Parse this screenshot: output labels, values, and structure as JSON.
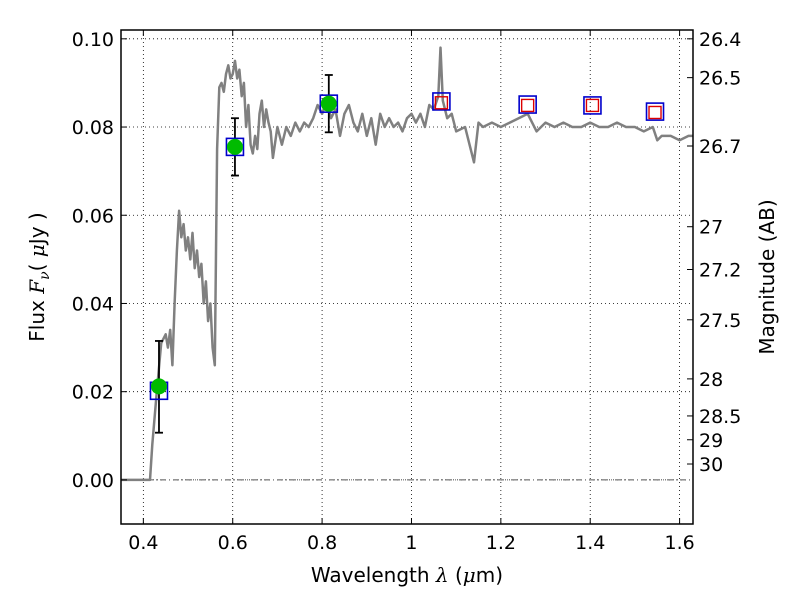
{
  "chart_data": {
    "type": "line",
    "xlabel": {
      "text": "Wavelength",
      "symbol": "λ",
      "unit_open": "(",
      "unit_mu": "μ",
      "unit_rest": "m)"
    },
    "ylabel": {
      "text": "Flux",
      "symbol": "F",
      "sub": "ν",
      "unit_open": "(",
      "unit_mu": "μ",
      "unit_rest": "Jy",
      "unit_close": ")"
    },
    "y2label": "Magnitude (AB)",
    "xlim": [
      0.35,
      1.63
    ],
    "ylim": [
      -0.01,
      0.102
    ],
    "xticks": [
      {
        "value": 0.4,
        "label": "0.4"
      },
      {
        "value": 0.6,
        "label": "0.6"
      },
      {
        "value": 0.8,
        "label": "0.8"
      },
      {
        "value": 1.0,
        "label": "1"
      },
      {
        "value": 1.2,
        "label": "1.2"
      },
      {
        "value": 1.4,
        "label": "1.4"
      },
      {
        "value": 1.6,
        "label": "1.6"
      }
    ],
    "yticks": [
      {
        "value": 0.0,
        "label": "0.00"
      },
      {
        "value": 0.02,
        "label": "0.02"
      },
      {
        "value": 0.04,
        "label": "0.04"
      },
      {
        "value": 0.06,
        "label": "0.06"
      },
      {
        "value": 0.08,
        "label": "0.08"
      },
      {
        "value": 0.1,
        "label": "0.10"
      }
    ],
    "right_ticks": [
      {
        "label": "26.4",
        "flux": 0.1
      },
      {
        "label": "26.5",
        "flux": 0.0912
      },
      {
        "label": "26.7",
        "flux": 0.0757
      },
      {
        "label": "27",
        "flux": 0.0574
      },
      {
        "label": "27.2",
        "flux": 0.0477
      },
      {
        "label": "27.5",
        "flux": 0.0363
      },
      {
        "label": "28",
        "flux": 0.0229
      },
      {
        "label": "28.5",
        "flux": 0.0145
      },
      {
        "label": "29",
        "flux": 0.0091
      },
      {
        "label": "30",
        "flux": 0.0036
      }
    ],
    "grid": true,
    "zero_line": true,
    "series": [
      {
        "kind": "model_spectrum",
        "color": "#808080",
        "x": [
          0.35,
          0.415,
          0.42,
          0.43,
          0.44,
          0.45,
          0.455,
          0.46,
          0.465,
          0.47,
          0.475,
          0.48,
          0.485,
          0.49,
          0.495,
          0.5,
          0.505,
          0.51,
          0.515,
          0.52,
          0.525,
          0.53,
          0.535,
          0.54,
          0.545,
          0.55,
          0.555,
          0.56,
          0.565,
          0.57,
          0.575,
          0.58,
          0.585,
          0.59,
          0.595,
          0.6,
          0.605,
          0.61,
          0.615,
          0.62,
          0.625,
          0.63,
          0.635,
          0.64,
          0.645,
          0.65,
          0.655,
          0.66,
          0.665,
          0.67,
          0.675,
          0.68,
          0.685,
          0.69,
          0.7,
          0.71,
          0.72,
          0.73,
          0.74,
          0.75,
          0.76,
          0.77,
          0.78,
          0.79,
          0.8,
          0.81,
          0.82,
          0.83,
          0.84,
          0.85,
          0.86,
          0.87,
          0.88,
          0.89,
          0.9,
          0.91,
          0.92,
          0.93,
          0.94,
          0.95,
          0.96,
          0.97,
          0.98,
          0.99,
          1.0,
          1.01,
          1.02,
          1.03,
          1.04,
          1.05,
          1.06,
          1.065,
          1.07,
          1.08,
          1.09,
          1.1,
          1.12,
          1.14,
          1.15,
          1.16,
          1.18,
          1.2,
          1.22,
          1.24,
          1.26,
          1.28,
          1.3,
          1.32,
          1.34,
          1.36,
          1.38,
          1.4,
          1.42,
          1.44,
          1.46,
          1.48,
          1.5,
          1.52,
          1.54,
          1.55,
          1.56,
          1.58,
          1.6,
          1.62,
          1.63
        ],
        "y": [
          0.0,
          0.0,
          0.008,
          0.02,
          0.031,
          0.033,
          0.03,
          0.034,
          0.026,
          0.04,
          0.052,
          0.061,
          0.055,
          0.058,
          0.052,
          0.055,
          0.05,
          0.056,
          0.048,
          0.052,
          0.046,
          0.049,
          0.04,
          0.045,
          0.036,
          0.04,
          0.03,
          0.026,
          0.075,
          0.089,
          0.09,
          0.088,
          0.092,
          0.094,
          0.091,
          0.092,
          0.095,
          0.091,
          0.093,
          0.087,
          0.09,
          0.08,
          0.085,
          0.076,
          0.074,
          0.078,
          0.075,
          0.083,
          0.086,
          0.08,
          0.084,
          0.081,
          0.079,
          0.073,
          0.08,
          0.076,
          0.08,
          0.078,
          0.081,
          0.079,
          0.081,
          0.08,
          0.082,
          0.085,
          0.083,
          0.086,
          0.082,
          0.084,
          0.078,
          0.083,
          0.085,
          0.081,
          0.079,
          0.083,
          0.078,
          0.082,
          0.076,
          0.083,
          0.08,
          0.082,
          0.08,
          0.081,
          0.079,
          0.082,
          0.083,
          0.081,
          0.083,
          0.08,
          0.085,
          0.084,
          0.087,
          0.098,
          0.086,
          0.082,
          0.083,
          0.079,
          0.08,
          0.072,
          0.081,
          0.08,
          0.081,
          0.08,
          0.081,
          0.082,
          0.083,
          0.079,
          0.081,
          0.08,
          0.081,
          0.08,
          0.08,
          0.081,
          0.08,
          0.08,
          0.081,
          0.08,
          0.08,
          0.079,
          0.08,
          0.077,
          0.078,
          0.078,
          0.077,
          0.078,
          0.078
        ]
      },
      {
        "kind": "observed_points",
        "marker": "circle",
        "color": "#00bb00",
        "x": [
          0.435,
          0.605,
          0.815
        ],
        "y": [
          0.0212,
          0.0755,
          0.0853
        ],
        "yerr_lo": [
          0.0105,
          0.0065,
          0.0065
        ],
        "yerr_hi": [
          0.0103,
          0.0065,
          0.0065
        ]
      },
      {
        "kind": "model_magnitudes",
        "marker": "square",
        "edgecolor": "#0000cc",
        "x": [
          0.435,
          0.605,
          0.815,
          1.067,
          1.26,
          1.405,
          1.545
        ],
        "y": [
          0.0202,
          0.0755,
          0.0853,
          0.0858,
          0.0851,
          0.0849,
          0.0835
        ]
      },
      {
        "kind": "upper_limits",
        "marker": "square",
        "edgecolor": "#dd0000",
        "x": [
          1.067,
          1.26,
          1.405,
          1.545
        ],
        "y": [
          0.0855,
          0.0849,
          0.0849,
          0.0833
        ]
      }
    ]
  }
}
